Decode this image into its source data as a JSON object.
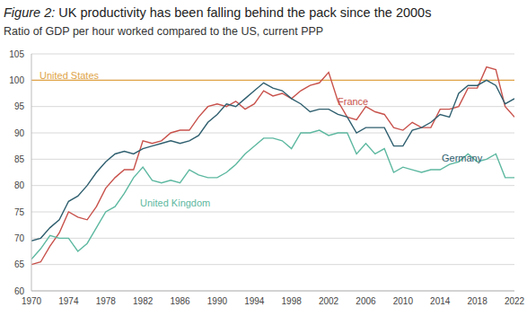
{
  "chart_data": {
    "type": "line",
    "title": "Figure 2: UK productivity has been falling behind the pack since the 2000s",
    "subtitle": "Ratio of GDP per hour worked compared to the US, current PPP",
    "x": [
      1970,
      1971,
      1972,
      1973,
      1974,
      1975,
      1976,
      1977,
      1978,
      1979,
      1980,
      1981,
      1982,
      1983,
      1984,
      1985,
      1986,
      1987,
      1988,
      1989,
      1990,
      1991,
      1992,
      1993,
      1994,
      1995,
      1996,
      1997,
      1998,
      1999,
      2000,
      2001,
      2002,
      2003,
      2004,
      2005,
      2006,
      2007,
      2008,
      2009,
      2010,
      2011,
      2012,
      2013,
      2014,
      2015,
      2016,
      2017,
      2018,
      2019,
      2020,
      2021,
      2022
    ],
    "series": [
      {
        "name": "United States",
        "color": "#e0a447",
        "values": [
          100,
          100,
          100,
          100,
          100,
          100,
          100,
          100,
          100,
          100,
          100,
          100,
          100,
          100,
          100,
          100,
          100,
          100,
          100,
          100,
          100,
          100,
          100,
          100,
          100,
          100,
          100,
          100,
          100,
          100,
          100,
          100,
          100,
          100,
          100,
          100,
          100,
          100,
          100,
          100,
          100,
          100,
          100,
          100,
          100,
          100,
          100,
          100,
          100,
          100,
          100,
          100,
          100
        ]
      },
      {
        "name": "France",
        "color": "#c8524c",
        "values": [
          65,
          65.5,
          68.5,
          71,
          75,
          74,
          73.5,
          76,
          79.5,
          81.5,
          83,
          83,
          88.5,
          88,
          88.5,
          90,
          90.5,
          90.5,
          93,
          95,
          95.5,
          95,
          96,
          94.5,
          95.5,
          98,
          97,
          97.5,
          96.5,
          98,
          99,
          99.5,
          101.5,
          96,
          93,
          92.5,
          95,
          94,
          93.5,
          91,
          90.5,
          92,
          91,
          91,
          94.5,
          94.5,
          95,
          98.5,
          98.5,
          102.5,
          102,
          95,
          93
        ]
      },
      {
        "name": "Germany",
        "color": "#2f5f6f",
        "values": [
          69.5,
          70,
          72,
          73.5,
          77,
          78,
          80,
          82.5,
          84.5,
          86,
          86.5,
          86,
          87,
          87.5,
          88,
          88.5,
          88,
          88.5,
          89.5,
          92,
          93.5,
          95.5,
          95,
          96.5,
          98,
          99.5,
          98.5,
          98,
          96.5,
          95.5,
          94,
          94.5,
          94.5,
          93.5,
          93,
          90,
          91,
          91,
          91,
          87.5,
          87.5,
          90.5,
          91,
          92,
          93.5,
          93,
          97.5,
          99,
          99,
          100,
          99,
          95.5,
          96.5
        ]
      },
      {
        "name": "United Kingdom",
        "color": "#5db8a0",
        "values": [
          66,
          68,
          70.5,
          70,
          70,
          67.5,
          69,
          72,
          75,
          76,
          78.5,
          81.5,
          83.5,
          81,
          80.5,
          81,
          80.5,
          83,
          82,
          81.5,
          81.5,
          82.5,
          84,
          86,
          87.5,
          89,
          89,
          88.5,
          87,
          90,
          90,
          90.5,
          89.5,
          90,
          90,
          86,
          88,
          86,
          87,
          82.5,
          83.5,
          83,
          82.5,
          83,
          83,
          84,
          84.5,
          86,
          84.5,
          85,
          86,
          81.5,
          81.5
        ]
      }
    ],
    "xlim": [
      1970,
      2022
    ],
    "xticks": [
      1970,
      1974,
      1978,
      1982,
      1986,
      1990,
      1994,
      1998,
      2002,
      2006,
      2010,
      2014,
      2018,
      2022
    ],
    "ylim": [
      60,
      105
    ],
    "yticks": [
      60,
      65,
      70,
      75,
      80,
      85,
      90,
      95,
      100,
      105
    ],
    "grid": true
  }
}
